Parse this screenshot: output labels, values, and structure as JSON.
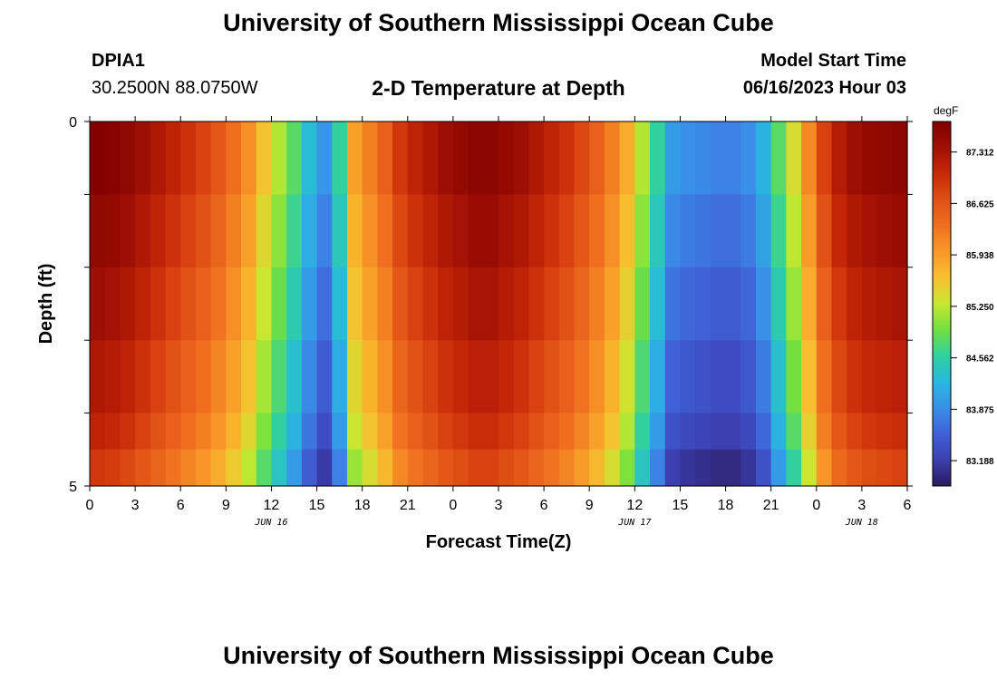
{
  "header": {
    "title": "University of Southern Mississippi Ocean Cube",
    "station_id": "DPIA1",
    "coordinates": "30.2500N  88.0750W",
    "subtitle": "2-D Temperature at Depth",
    "model_start_label": "Model Start Time",
    "model_start_value": "06/16/2023 Hour 03"
  },
  "footer": {
    "title": "University of Southern Mississippi Ocean Cube"
  },
  "colors": {
    "colormap": [
      "#2a1a5e",
      "#3b3fb0",
      "#4060d8",
      "#3a8fe8",
      "#28b8e0",
      "#30d0a0",
      "#70e040",
      "#c8e830",
      "#f8c030",
      "#f89828",
      "#f07020",
      "#e05015",
      "#c82808",
      "#a01004",
      "#800000"
    ]
  },
  "chart_data": {
    "type": "heatmap",
    "xlabel": "Forecast Time(Z)",
    "ylabel": "Depth (ft)",
    "colorbar_unit": "degF",
    "colorbar_ticks": [
      "87.312",
      "86.625",
      "85.938",
      "85.250",
      "84.562",
      "83.875",
      "83.188"
    ],
    "colorbar_tick_values": [
      87.312,
      86.625,
      85.938,
      85.25,
      84.562,
      83.875,
      83.188
    ],
    "vrange": [
      82.85,
      87.72
    ],
    "x_range": [
      0,
      54
    ],
    "x_ticks": [
      0,
      3,
      6,
      9,
      12,
      15,
      18,
      21,
      24,
      27,
      30,
      33,
      36,
      39,
      42,
      45,
      48,
      51,
      54
    ],
    "x_tick_labels": [
      "0",
      "3",
      "6",
      "9",
      "12",
      "15",
      "18",
      "21",
      "0",
      "3",
      "6",
      "9",
      "12",
      "15",
      "18",
      "21",
      "0",
      "3",
      "6"
    ],
    "date_labels": [
      {
        "text": "JUN 16",
        "hour": 12
      },
      {
        "text": "JUN 17",
        "hour": 36
      },
      {
        "text": "JUN 18",
        "hour": 51
      }
    ],
    "y_range": [
      0,
      5
    ],
    "y_ticks": [
      0,
      1,
      2,
      3,
      4,
      5
    ],
    "y_tick_labels": [
      "0",
      "5"
    ],
    "time_hours": [
      0,
      1,
      2,
      3,
      4,
      5,
      6,
      7,
      8,
      9,
      10,
      11,
      12,
      13,
      14,
      15,
      16,
      17,
      18,
      19,
      20,
      21,
      22,
      23,
      24,
      25,
      26,
      27,
      28,
      29,
      30,
      31,
      32,
      33,
      34,
      35,
      36,
      37,
      38,
      39,
      40,
      41,
      42,
      43,
      44,
      45,
      46,
      47,
      48,
      49,
      50,
      51,
      52,
      53
    ],
    "depth_levels_ft": [
      "0-1",
      "1-2",
      "2-3",
      "3-4",
      "4-4.5",
      "4.5-5"
    ],
    "surface_temperature_degF": [
      87.7,
      87.65,
      87.55,
      87.4,
      87.25,
      87.1,
      86.95,
      86.8,
      86.6,
      86.35,
      86.05,
      85.6,
      85.2,
      84.8,
      84.3,
      83.95,
      84.6,
      85.9,
      86.2,
      86.5,
      86.9,
      87.1,
      87.25,
      87.4,
      87.5,
      87.6,
      87.6,
      87.5,
      87.4,
      87.25,
      87.1,
      86.95,
      86.75,
      86.5,
      86.2,
      85.8,
      85.2,
      84.6,
      84.0,
      83.9,
      83.85,
      83.8,
      83.8,
      83.9,
      84.2,
      84.8,
      85.4,
      86.1,
      86.8,
      87.2,
      87.4,
      87.5,
      87.55,
      87.6
    ],
    "depth_offsets_degF": [
      0,
      -0.15,
      -0.3,
      -0.45,
      -0.6,
      -0.8
    ]
  }
}
